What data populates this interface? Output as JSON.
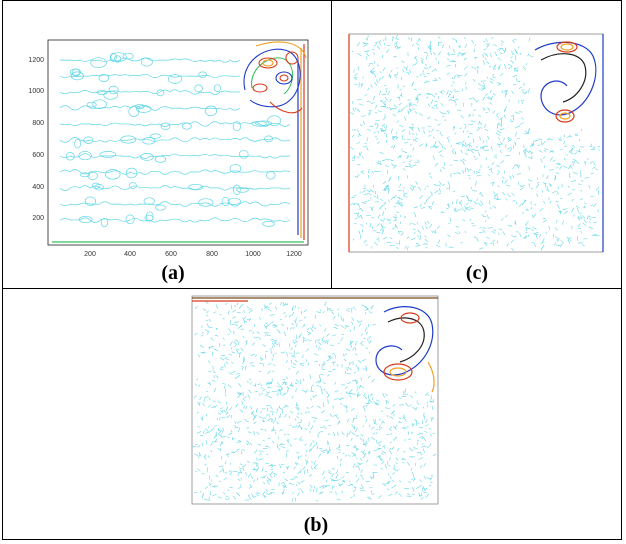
{
  "panels": {
    "a": {
      "caption": "(a)",
      "y_ticks": [
        "200",
        "400",
        "600",
        "800",
        "1000",
        "1200"
      ],
      "x_ticks": [
        "200",
        "400",
        "600",
        "800",
        "1000",
        "1200"
      ]
    },
    "c": {
      "caption": "(c)"
    },
    "b": {
      "caption": "(b)"
    }
  },
  "colors": {
    "field": "#5fd6e6",
    "vortex_blue": "#1f3cc8",
    "vortex_red": "#d83a1a",
    "vortex_orange": "#f0a020",
    "vortex_green": "#3cc060"
  }
}
